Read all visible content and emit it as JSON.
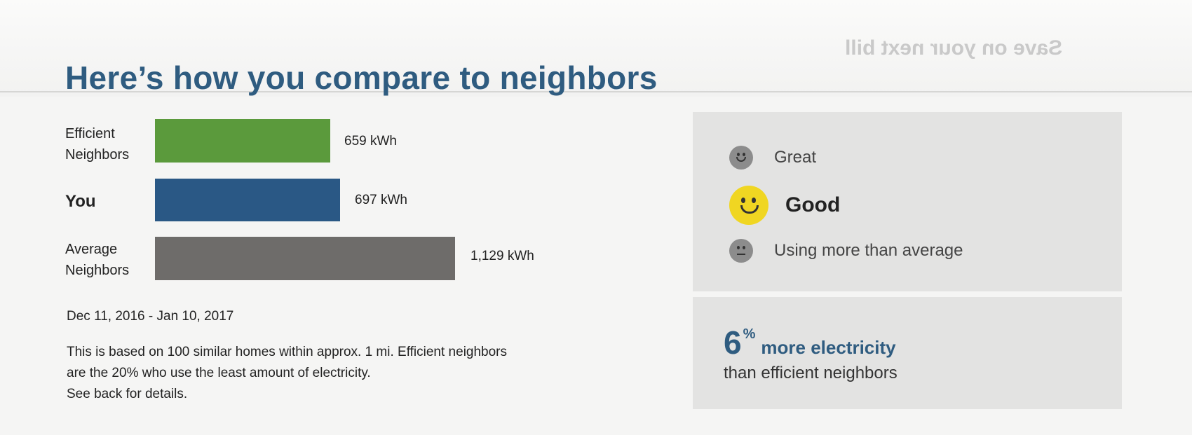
{
  "header": {
    "title": "Here’s how you compare to neighbors",
    "ghost_text": "Save on your next bill"
  },
  "chart_data": {
    "type": "bar",
    "orientation": "horizontal",
    "categories": [
      "Efficient Neighbors",
      "You",
      "Average Neighbors"
    ],
    "values": [
      659,
      697,
      1129
    ],
    "unit": "kWh",
    "value_labels": [
      "659 kWh",
      "697 kWh",
      "1,129 kWh"
    ],
    "colors": [
      "#5b9a3c",
      "#2a5885",
      "#6e6c6a"
    ],
    "labels": [
      {
        "line1": "Efficient",
        "line2": "Neighbors"
      },
      {
        "line1": "You",
        "line2": ""
      },
      {
        "line1": "Average",
        "line2": "Neighbors"
      }
    ]
  },
  "period": "Dec 11, 2016 - Jan 10, 2017",
  "note": {
    "line1": "This is based on 100 similar homes within approx. 1 mi. Efficient neighbors",
    "line2": "are the 20% who use the least amount of electricity.",
    "line3": "See back for details."
  },
  "rating": {
    "items": [
      {
        "label": "Great",
        "icon": "smile-face-icon",
        "active": false
      },
      {
        "label": "Good",
        "icon": "smile-face-icon",
        "active": true
      },
      {
        "label": "Using more than average",
        "icon": "neutral-face-icon",
        "active": false
      }
    ],
    "active_color": "#f0d622",
    "inactive_color": "#8c8c8c"
  },
  "comparison": {
    "percent": "6",
    "percent_sign": "%",
    "text": "more electricity",
    "subtext": "than efficient neighbors"
  }
}
